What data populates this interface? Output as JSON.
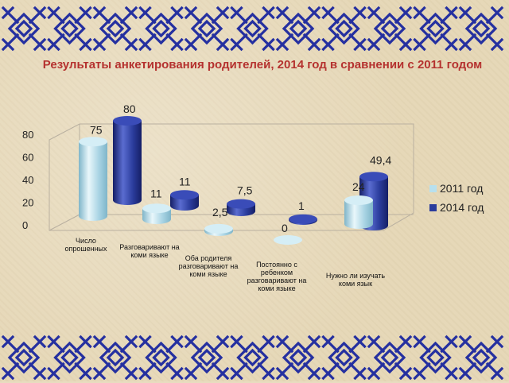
{
  "title": "Результаты анкетирования родителей, 2014 год в сравнении с 2011 годом",
  "colors": {
    "series_2011": "#b8e0ee",
    "series_2014": "#2a3c9c",
    "ornament": "#2530a0",
    "title": "#b5322f"
  },
  "chart_data": {
    "type": "bar",
    "title": "Результаты анкетирования родителей, 2014 год в сравнении с 2011 годом",
    "xlabel": "",
    "ylabel": "",
    "ylim": [
      0,
      80
    ],
    "yticks": [
      "0",
      "20",
      "40",
      "60",
      "80"
    ],
    "legend_position": "right",
    "grid": false,
    "categories": [
      [
        "Число",
        "опрошенных"
      ],
      [
        "Разговаривают на",
        "коми языке"
      ],
      [
        "Оба родителя",
        "разговаривают на",
        "коми языке"
      ],
      [
        "Постоянно с",
        "ребенком",
        "разговаривают на",
        "коми языке"
      ],
      [
        "Нужно ли изучать",
        "коми язык"
      ]
    ],
    "series": [
      {
        "name": "2011 год",
        "values": [
          75,
          11,
          2.5,
          0,
          24
        ],
        "labels": [
          "75",
          "11",
          "2,5",
          "0",
          "24"
        ]
      },
      {
        "name": "2014 год",
        "values": [
          80,
          11,
          7.5,
          1,
          49.4
        ],
        "labels": [
          "80",
          "11",
          "7,5",
          "1",
          "49,4"
        ]
      }
    ]
  }
}
